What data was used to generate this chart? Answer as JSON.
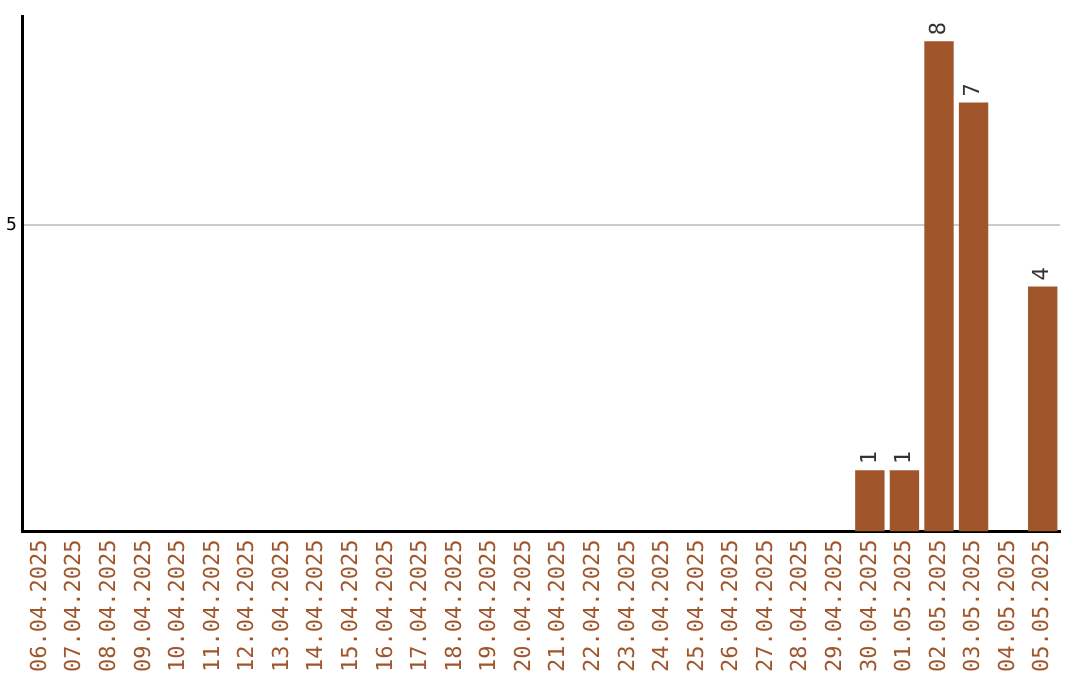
{
  "chart_data": {
    "type": "bar",
    "categories": [
      "06.04.2025",
      "07.04.2025",
      "08.04.2025",
      "09.04.2025",
      "10.04.2025",
      "11.04.2025",
      "12.04.2025",
      "13.04.2025",
      "14.04.2025",
      "15.04.2025",
      "16.04.2025",
      "17.04.2025",
      "18.04.2025",
      "19.04.2025",
      "20.04.2025",
      "21.04.2025",
      "22.04.2025",
      "23.04.2025",
      "24.04.2025",
      "25.04.2025",
      "26.04.2025",
      "27.04.2025",
      "28.04.2025",
      "29.04.2025",
      "30.04.2025",
      "01.05.2025",
      "02.05.2025",
      "03.05.2025",
      "04.05.2025",
      "05.05.2025"
    ],
    "values": [
      null,
      null,
      null,
      null,
      null,
      null,
      null,
      null,
      null,
      null,
      null,
      null,
      null,
      null,
      null,
      null,
      null,
      null,
      null,
      null,
      null,
      null,
      null,
      null,
      1,
      1,
      8,
      7,
      null,
      4
    ],
    "color": "#a0562a",
    "ylim": [
      0,
      8.4
    ],
    "yticks": [
      5
    ],
    "grid": "y",
    "data_labels": true,
    "legend": false
  }
}
